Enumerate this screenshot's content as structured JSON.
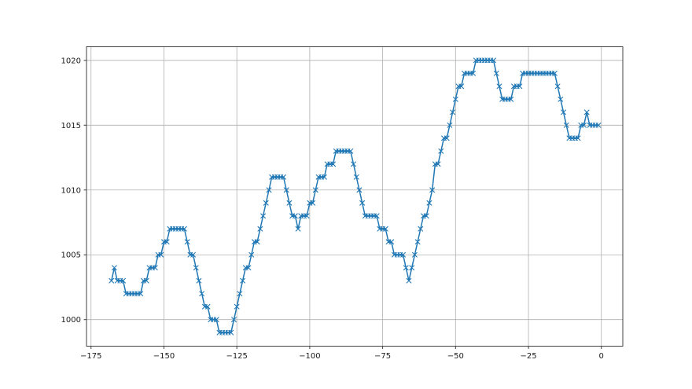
{
  "figure": {
    "background_color": "#ffffff",
    "title": ""
  },
  "chart_data": {
    "type": "line",
    "title": "",
    "xlabel": "",
    "ylabel": "",
    "marker": "x",
    "line_color": "#1f77b4",
    "grid": true,
    "grid_color": "#b0b0b0",
    "spine_color": "#404040",
    "tick_label_color": "#1a1a1a",
    "legend_position": "none",
    "xlim": [
      -176.55,
      7.35
    ],
    "ylim": [
      997.95,
      1021.05
    ],
    "xticks": [
      {
        "value": -175,
        "label": "−175"
      },
      {
        "value": -150,
        "label": "−150"
      },
      {
        "value": -125,
        "label": "−125"
      },
      {
        "value": -100,
        "label": "−100"
      },
      {
        "value": -75,
        "label": "−75"
      },
      {
        "value": -50,
        "label": "−50"
      },
      {
        "value": -25,
        "label": "−25"
      },
      {
        "value": 0,
        "label": "0"
      }
    ],
    "yticks": [
      {
        "value": 1000,
        "label": "1000"
      },
      {
        "value": 1005,
        "label": "1005"
      },
      {
        "value": 1010,
        "label": "1010"
      },
      {
        "value": 1015,
        "label": "1015"
      },
      {
        "value": 1020,
        "label": "1020"
      }
    ],
    "x_start": -168,
    "x_step": 1,
    "x": [
      -168,
      -167,
      -166,
      -165,
      -164,
      -163,
      -162,
      -161,
      -160,
      -159,
      -158,
      -157,
      -156,
      -155,
      -154,
      -153,
      -152,
      -151,
      -150,
      -149,
      -148,
      -147,
      -146,
      -145,
      -144,
      -143,
      -142,
      -141,
      -140,
      -139,
      -138,
      -137,
      -136,
      -135,
      -134,
      -133,
      -132,
      -131,
      -130,
      -129,
      -128,
      -127,
      -126,
      -125,
      -124,
      -123,
      -122,
      -121,
      -120,
      -119,
      -118,
      -117,
      -116,
      -115,
      -114,
      -113,
      -112,
      -111,
      -110,
      -109,
      -108,
      -107,
      -106,
      -105,
      -104,
      -103,
      -102,
      -101,
      -100,
      -99,
      -98,
      -97,
      -96,
      -95,
      -94,
      -93,
      -92,
      -91,
      -90,
      -89,
      -88,
      -87,
      -86,
      -85,
      -84,
      -83,
      -82,
      -81,
      -80,
      -79,
      -78,
      -77,
      -76,
      -75,
      -74,
      -73,
      -72,
      -71,
      -70,
      -69,
      -68,
      -67,
      -66,
      -65,
      -64,
      -63,
      -62,
      -61,
      -60,
      -59,
      -58,
      -57,
      -56,
      -55,
      -54,
      -53,
      -52,
      -51,
      -50,
      -49,
      -48,
      -47,
      -46,
      -45,
      -44,
      -43,
      -42,
      -41,
      -40,
      -39,
      -38,
      -37,
      -36,
      -35,
      -34,
      -33,
      -32,
      -31,
      -30,
      -29,
      -28,
      -27,
      -26,
      -25,
      -24,
      -23,
      -22,
      -21,
      -20,
      -19,
      -18,
      -17,
      -16,
      -15,
      -14,
      -13,
      -12,
      -11,
      -10,
      -9,
      -8,
      -7,
      -6,
      -5,
      -4,
      -3,
      -2,
      -1
    ],
    "y": [
      1003,
      1004,
      1003,
      1003,
      1003,
      1002,
      1002,
      1002,
      1002,
      1002,
      1002,
      1003,
      1003,
      1004,
      1004,
      1004,
      1005,
      1005,
      1006,
      1006,
      1007,
      1007,
      1007,
      1007,
      1007,
      1007,
      1006,
      1005,
      1005,
      1004,
      1003,
      1002,
      1001,
      1001,
      1000,
      1000,
      1000,
      999,
      999,
      999,
      999,
      999,
      1000,
      1001,
      1002,
      1003,
      1004,
      1004,
      1005,
      1006,
      1006,
      1007,
      1008,
      1009,
      1010,
      1011,
      1011,
      1011,
      1011,
      1011,
      1010,
      1009,
      1008,
      1008,
      1007,
      1008,
      1008,
      1008,
      1009,
      1009,
      1010,
      1011,
      1011,
      1011,
      1012,
      1012,
      1012,
      1013,
      1013,
      1013,
      1013,
      1013,
      1013,
      1012,
      1011,
      1010,
      1009,
      1008,
      1008,
      1008,
      1008,
      1008,
      1007,
      1007,
      1007,
      1006,
      1006,
      1005,
      1005,
      1005,
      1005,
      1004,
      1003,
      1004,
      1005,
      1006,
      1007,
      1008,
      1008,
      1009,
      1010,
      1012,
      1012,
      1013,
      1014,
      1014,
      1015,
      1016,
      1017,
      1018,
      1018,
      1019,
      1019,
      1019,
      1019,
      1020,
      1020,
      1020,
      1020,
      1020,
      1020,
      1020,
      1019,
      1018,
      1017,
      1017,
      1017,
      1017,
      1018,
      1018,
      1018,
      1019,
      1019,
      1019,
      1019,
      1019,
      1019,
      1019,
      1019,
      1019,
      1019,
      1019,
      1019,
      1018,
      1017,
      1016,
      1015,
      1014,
      1014,
      1014,
      1014,
      1015,
      1015,
      1016,
      1015,
      1015,
      1015,
      1015
    ]
  }
}
